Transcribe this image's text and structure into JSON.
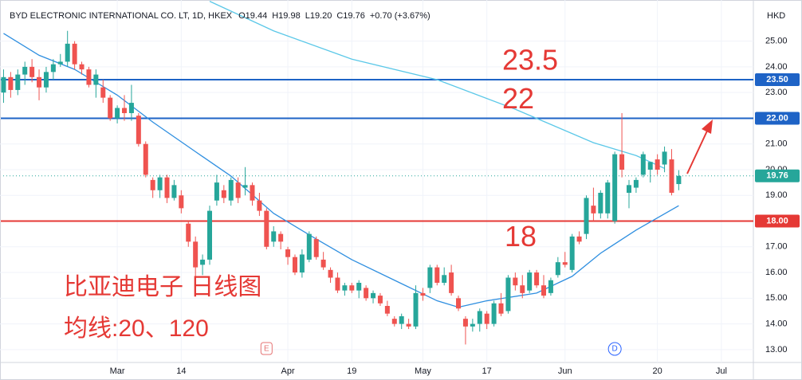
{
  "chart_data": {
    "type": "candlestick",
    "title": "BYD ELECTRONIC INTERNATIONAL CO. LT, 1D, HKEX",
    "header_values": [
      "O19.44",
      "H19.98",
      "L19.20",
      "C19.76",
      "+0.70 (+3.67%)"
    ],
    "currency": "HKD",
    "up_color": "#26a69a",
    "down_color": "#ef5350",
    "ohlc": [
      [
        23.0,
        23.9,
        22.6,
        23.6
      ],
      [
        23.6,
        23.8,
        22.8,
        23.1
      ],
      [
        23.1,
        23.9,
        22.9,
        23.7
      ],
      [
        23.7,
        24.2,
        23.3,
        24.0
      ],
      [
        24.0,
        24.3,
        23.4,
        23.6
      ],
      [
        23.6,
        23.9,
        22.7,
        23.2
      ],
      [
        23.2,
        24.0,
        23.0,
        23.8
      ],
      [
        23.8,
        24.3,
        23.5,
        24.1
      ],
      [
        24.1,
        24.5,
        24.0,
        24.2
      ],
      [
        24.2,
        25.4,
        24.0,
        24.9
      ],
      [
        24.9,
        25.0,
        23.9,
        24.1
      ],
      [
        24.1,
        24.2,
        23.7,
        23.9
      ],
      [
        23.9,
        24.0,
        23.2,
        23.3
      ],
      [
        23.3,
        23.9,
        22.8,
        23.7
      ],
      [
        23.2,
        23.5,
        22.6,
        22.8
      ],
      [
        22.8,
        22.9,
        21.9,
        22.0
      ],
      [
        22.0,
        22.5,
        21.8,
        22.4
      ],
      [
        22.4,
        22.9,
        21.9,
        22.2
      ],
      [
        22.2,
        23.3,
        21.9,
        22.6
      ],
      [
        22.1,
        22.2,
        20.9,
        21.0
      ],
      [
        21.0,
        21.1,
        19.7,
        19.8
      ],
      [
        19.6,
        19.7,
        18.9,
        19.2
      ],
      [
        19.2,
        19.8,
        18.9,
        19.7
      ],
      [
        19.7,
        19.8,
        18.7,
        18.9
      ],
      [
        18.9,
        19.6,
        18.8,
        19.4
      ],
      [
        19.0,
        19.2,
        18.3,
        18.5
      ],
      [
        17.9,
        18.0,
        17.0,
        17.2
      ],
      [
        17.2,
        17.4,
        15.8,
        16.2
      ],
      [
        16.3,
        16.7,
        15.9,
        16.5
      ],
      [
        16.5,
        18.6,
        16.3,
        18.4
      ],
      [
        18.8,
        19.8,
        18.6,
        19.5
      ],
      [
        19.2,
        19.4,
        18.7,
        18.9
      ],
      [
        18.8,
        19.7,
        18.6,
        19.6
      ],
      [
        19.5,
        19.7,
        18.7,
        18.9
      ],
      [
        19.3,
        20.1,
        19.0,
        19.4
      ],
      [
        19.4,
        19.5,
        18.6,
        18.8
      ],
      [
        18.8,
        19.1,
        18.2,
        18.4
      ],
      [
        18.4,
        18.5,
        16.9,
        17.0
      ],
      [
        17.2,
        17.8,
        17.0,
        17.6
      ],
      [
        17.5,
        17.6,
        16.9,
        17.2
      ],
      [
        16.9,
        17.0,
        16.3,
        16.6
      ],
      [
        16.6,
        16.7,
        15.9,
        16.0
      ],
      [
        16.0,
        16.9,
        15.8,
        16.7
      ],
      [
        16.5,
        17.6,
        16.4,
        17.5
      ],
      [
        17.3,
        17.4,
        16.5,
        16.6
      ],
      [
        16.5,
        16.8,
        16.1,
        16.2
      ],
      [
        16.1,
        16.2,
        15.6,
        15.8
      ],
      [
        15.8,
        16.0,
        15.2,
        15.3
      ],
      [
        15.3,
        15.6,
        15.1,
        15.5
      ],
      [
        15.5,
        15.6,
        15.2,
        15.3
      ],
      [
        15.3,
        15.7,
        15.0,
        15.6
      ],
      [
        15.4,
        15.5,
        14.9,
        15.0
      ],
      [
        15.0,
        15.3,
        14.8,
        15.2
      ],
      [
        15.1,
        15.2,
        14.7,
        14.8
      ],
      [
        14.7,
        14.9,
        14.3,
        14.4
      ],
      [
        14.2,
        14.3,
        13.9,
        14.0
      ],
      [
        14.0,
        14.4,
        13.8,
        14.3
      ],
      [
        14.0,
        14.2,
        13.8,
        13.9
      ],
      [
        13.9,
        15.5,
        13.8,
        15.2
      ],
      [
        15.2,
        15.4,
        14.9,
        15.1
      ],
      [
        15.4,
        16.3,
        15.2,
        16.2
      ],
      [
        16.2,
        16.3,
        15.5,
        15.6
      ],
      [
        15.6,
        16.2,
        15.5,
        15.9
      ],
      [
        16.0,
        16.3,
        15.1,
        15.2
      ],
      [
        15.0,
        15.1,
        14.5,
        14.6
      ],
      [
        14.2,
        14.3,
        13.2,
        13.9
      ],
      [
        13.9,
        14.2,
        13.7,
        14.0
      ],
      [
        14.0,
        14.6,
        13.7,
        14.5
      ],
      [
        14.4,
        14.5,
        13.8,
        14.0
      ],
      [
        14.0,
        14.9,
        13.9,
        14.8
      ],
      [
        14.8,
        15.2,
        14.3,
        14.4
      ],
      [
        14.5,
        15.9,
        14.4,
        15.8
      ],
      [
        15.8,
        16.0,
        15.3,
        15.5
      ],
      [
        15.5,
        15.9,
        15.0,
        15.2
      ],
      [
        15.3,
        16.1,
        15.2,
        16.0
      ],
      [
        16.0,
        16.1,
        15.4,
        15.5
      ],
      [
        15.5,
        15.9,
        15.0,
        15.1
      ],
      [
        15.2,
        15.8,
        15.1,
        15.7
      ],
      [
        15.9,
        16.6,
        15.8,
        16.4
      ],
      [
        16.4,
        16.8,
        16.2,
        16.3
      ],
      [
        16.1,
        17.5,
        16.0,
        17.4
      ],
      [
        17.4,
        17.6,
        17.1,
        17.2
      ],
      [
        17.5,
        19.0,
        17.3,
        18.9
      ],
      [
        18.6,
        19.3,
        18.0,
        18.3
      ],
      [
        18.3,
        19.2,
        18.1,
        19.1
      ],
      [
        18.3,
        19.6,
        18.1,
        19.5
      ],
      [
        18.0,
        20.7,
        17.9,
        20.6
      ],
      [
        20.6,
        22.2,
        19.7,
        20.0
      ],
      [
        19.1,
        19.6,
        18.5,
        19.4
      ],
      [
        19.3,
        19.7,
        19.1,
        19.6
      ],
      [
        19.8,
        20.7,
        19.7,
        20.6
      ],
      [
        20.0,
        20.3,
        19.5,
        20.3
      ],
      [
        20.4,
        20.6,
        19.8,
        20.0
      ],
      [
        20.2,
        20.9,
        19.9,
        20.7
      ],
      [
        20.4,
        20.8,
        19.0,
        19.1
      ],
      [
        19.44,
        19.98,
        19.2,
        19.76
      ]
    ],
    "moving_averages": [
      {
        "color": "#2f8fe0",
        "x": [
          0,
          5,
          10,
          16,
          21,
          27,
          32,
          38,
          44,
          49,
          55,
          61,
          64,
          68,
          75,
          80,
          84,
          89,
          95
        ],
        "values": [
          25.3,
          24.45,
          23.9,
          22.9,
          21.85,
          20.7,
          19.75,
          18.3,
          17.3,
          16.5,
          15.7,
          14.9,
          14.65,
          14.9,
          15.2,
          15.85,
          16.75,
          17.65,
          18.6
        ]
      },
      {
        "color": "#5bc8e8",
        "x": [
          29,
          38,
          49,
          61,
          72,
          83,
          89,
          93
        ],
        "values": [
          26.55,
          25.4,
          24.3,
          23.5,
          22.35,
          21.05,
          20.55,
          20.05
        ]
      }
    ],
    "ylim": [
      12.5,
      26.6
    ],
    "yticks": [
      {
        "value": 13,
        "label": "13.00"
      },
      {
        "value": 14,
        "label": "14.00"
      },
      {
        "value": 15,
        "label": "15.00"
      },
      {
        "value": 16,
        "label": "16.00"
      },
      {
        "value": 17,
        "label": "17.00"
      },
      {
        "value": 18,
        "label": "18.00"
      },
      {
        "value": 19,
        "label": "19.00"
      },
      {
        "value": 20,
        "label": "20.00"
      },
      {
        "value": 21,
        "label": "21.00"
      },
      {
        "value": 22,
        "label": "22.00"
      },
      {
        "value": 23,
        "label": "23.00"
      },
      {
        "value": 24,
        "label": "24.00"
      },
      {
        "value": 25,
        "label": "25.00"
      }
    ],
    "xlim": [
      -0.5,
      105.5
    ],
    "xticks": [
      {
        "value": 16,
        "label": "Mar"
      },
      {
        "value": 25,
        "label": "14"
      },
      {
        "value": 40,
        "label": "Apr"
      },
      {
        "value": 49,
        "label": "19"
      },
      {
        "value": 59,
        "label": "May"
      },
      {
        "value": 68,
        "label": "17"
      },
      {
        "value": 79,
        "label": "Jun"
      },
      {
        "value": 92,
        "label": "20"
      },
      {
        "value": 101,
        "label": "Jul"
      }
    ],
    "levels": [
      {
        "value": 23.5,
        "label": "23.50",
        "color": "#1e63c6"
      },
      {
        "value": 22,
        "label": "22.00",
        "color": "#1e63c6"
      },
      {
        "value": 18,
        "label": "18.00",
        "color": "#e53935"
      }
    ],
    "last_price": {
      "value": 19.76,
      "label": "19.76",
      "color": "#26a69a"
    },
    "annotations": [
      {
        "text": "23.5",
        "value": 23.5
      },
      {
        "text": "22",
        "value": 22
      },
      {
        "text": "18",
        "value": 18
      }
    ],
    "notes": [
      "比亚迪电子 日线图",
      "均线:20、120"
    ],
    "events": [
      {
        "text": "E",
        "x": 37
      },
      {
        "text": "D",
        "x": 86
      }
    ]
  }
}
